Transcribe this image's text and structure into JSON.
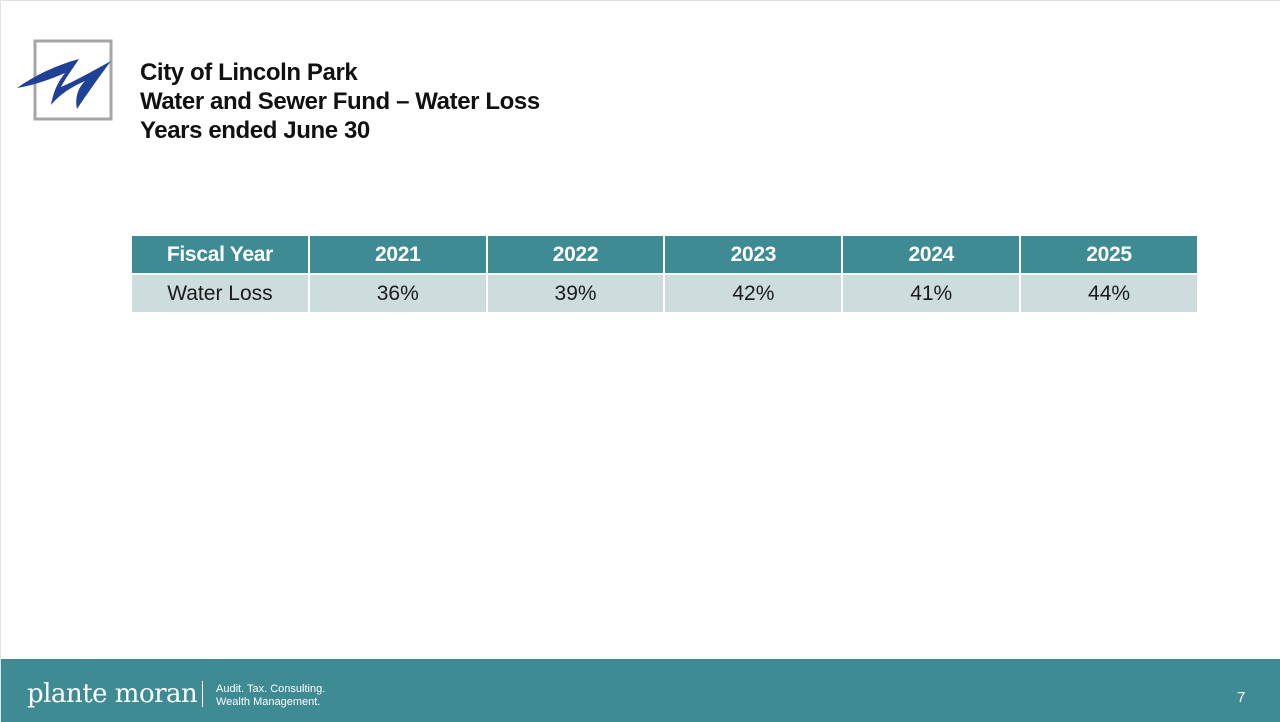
{
  "header": {
    "title_line1": "City of Lincoln Park",
    "title_line2": "Water and Sewer Fund – Water Loss",
    "title_line3": "Years ended June 30",
    "logo_icon": "city-swoosh-logo-icon"
  },
  "table": {
    "headers": [
      "Fiscal Year",
      "2021",
      "2022",
      "2023",
      "2024",
      "2025"
    ],
    "rows": [
      [
        "Water Loss",
        "36%",
        "39%",
        "42%",
        "41%",
        "44%"
      ]
    ]
  },
  "footer": {
    "brand": "plante moran",
    "tagline_line1": "Audit. Tax. Consulting.",
    "tagline_line2": "Wealth Management.",
    "page_number": "7"
  },
  "colors": {
    "accent_teal": "#3e8b93",
    "row_fill": "#cdddde",
    "logo_blue": "#1f4196",
    "logo_frame": "#a6a6a6"
  }
}
